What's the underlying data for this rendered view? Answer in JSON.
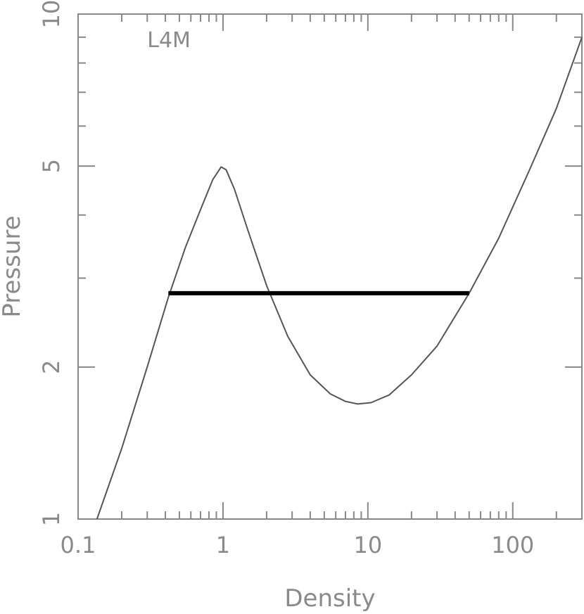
{
  "chart_data": {
    "type": "line",
    "title": "",
    "xlabel": "Density",
    "ylabel": "Pressure",
    "xscale": "log",
    "yscale": "log",
    "xlim": [
      0.1,
      300
    ],
    "ylim": [
      1,
      10
    ],
    "x_tick_labels": [
      {
        "value": 0.1,
        "label": "0.1"
      },
      {
        "value": 1,
        "label": "1"
      },
      {
        "value": 10,
        "label": "10"
      },
      {
        "value": 100,
        "label": "100"
      }
    ],
    "y_tick_labels": [
      {
        "value": 1,
        "label": "1"
      },
      {
        "value": 2,
        "label": "2"
      },
      {
        "value": 5,
        "label": "5"
      },
      {
        "value": 10,
        "label": "10"
      }
    ],
    "annotation": {
      "text": "L4M",
      "x": 0.3,
      "y": 8.6
    },
    "series": [
      {
        "style": "thin",
        "color": "#555555",
        "x": [
          0.135,
          0.2,
          0.3,
          0.42,
          0.55,
          0.7,
          0.85,
          0.97,
          1.05,
          1.2,
          1.5,
          2.0,
          2.8,
          4.0,
          5.5,
          7.0,
          8.5,
          10.5,
          14,
          20,
          30,
          50,
          80,
          130,
          200,
          300
        ],
        "y": [
          1.0,
          1.38,
          2.0,
          2.75,
          3.45,
          4.1,
          4.7,
          4.98,
          4.92,
          4.5,
          3.7,
          2.9,
          2.3,
          1.93,
          1.77,
          1.71,
          1.69,
          1.7,
          1.76,
          1.93,
          2.2,
          2.8,
          3.6,
          4.9,
          6.5,
          9.0
        ]
      },
      {
        "style": "thick",
        "color": "#000000",
        "x": [
          0.42,
          50
        ],
        "y": [
          2.8,
          2.8
        ]
      }
    ],
    "grid": false,
    "legend": "none"
  }
}
